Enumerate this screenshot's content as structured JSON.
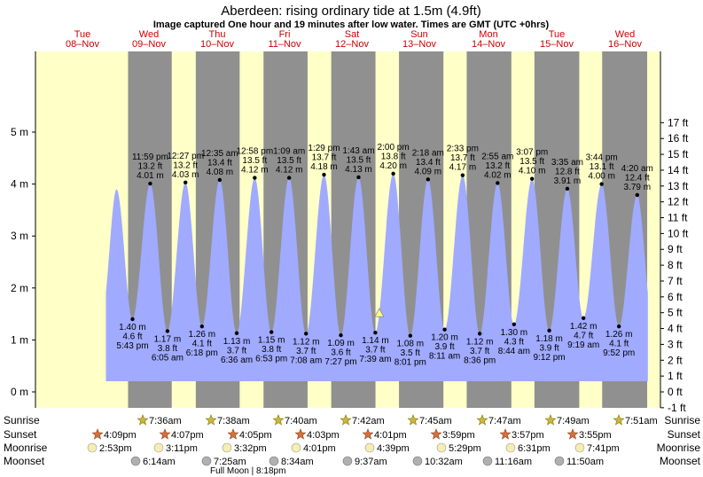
{
  "header": {
    "title": "Aberdeen: rising  ordinary tide at 1.5m (4.9ft)",
    "subtitle": "Image captured One hour and 19 minutes after low water. Times are GMT (UTC +0hrs)"
  },
  "days": [
    {
      "name": "Tue",
      "date": "08–Nov"
    },
    {
      "name": "Wed",
      "date": "09–Nov"
    },
    {
      "name": "Thu",
      "date": "10–Nov"
    },
    {
      "name": "Fri",
      "date": "11–Nov"
    },
    {
      "name": "Sat",
      "date": "12–Nov"
    },
    {
      "name": "Sun",
      "date": "13–Nov"
    },
    {
      "name": "Mon",
      "date": "14–Nov"
    },
    {
      "name": "Tue",
      "date": "15–Nov"
    },
    {
      "name": "Wed",
      "date": "16–Nov"
    }
  ],
  "chart_data": {
    "type": "area",
    "y_unit_left": "m",
    "y_unit_right": "ft",
    "ylim_m": [
      -0.3,
      5.2
    ],
    "yticks_m": [
      0,
      1,
      2,
      3,
      4,
      5
    ],
    "yticks_ft": [
      -1,
      0,
      1,
      2,
      3,
      4,
      5,
      6,
      7,
      8,
      9,
      10,
      11,
      12,
      13,
      14,
      15,
      16,
      17
    ],
    "series": [
      {
        "type": "high",
        "height_m": 3.9,
        "labelled": false
      },
      {
        "type": "low",
        "height_m": 1.4,
        "ft": "4.6 ft",
        "m": "1.40 m",
        "time": "5:43 pm"
      },
      {
        "type": "high",
        "height_m": 4.01,
        "ft": "13.2 ft",
        "m": "4.01 m",
        "time": "11:59 pm"
      },
      {
        "type": "low",
        "height_m": 1.17,
        "ft": "3.8 ft",
        "m": "1.17 m",
        "time": "6:05 am"
      },
      {
        "type": "high",
        "height_m": 4.03,
        "ft": "13.2 ft",
        "m": "4.03 m",
        "time": "12:27 pm"
      },
      {
        "type": "low",
        "height_m": 1.26,
        "ft": "4.1 ft",
        "m": "1.26 m",
        "time": "6:18 pm"
      },
      {
        "type": "high",
        "height_m": 4.08,
        "ft": "13.4 ft",
        "m": "4.08 m",
        "time": "12:35 am"
      },
      {
        "type": "low",
        "height_m": 1.13,
        "ft": "3.7 ft",
        "m": "1.13 m",
        "time": "6:36 am"
      },
      {
        "type": "high",
        "height_m": 4.12,
        "ft": "13.5 ft",
        "m": "4.12 m",
        "time": "12:58 pm"
      },
      {
        "type": "low",
        "height_m": 1.15,
        "ft": "3.8 ft",
        "m": "1.15 m",
        "time": "6:53 pm"
      },
      {
        "type": "high",
        "height_m": 4.12,
        "ft": "13.5 ft",
        "m": "4.12 m",
        "time": "1:09 am"
      },
      {
        "type": "low",
        "height_m": 1.12,
        "ft": "3.7 ft",
        "m": "1.12 m",
        "time": "7:08 am"
      },
      {
        "type": "high",
        "height_m": 4.18,
        "ft": "13.7 ft",
        "m": "4.18 m",
        "time": "1:29 pm"
      },
      {
        "type": "low",
        "height_m": 1.09,
        "ft": "3.6 ft",
        "m": "1.09 m",
        "time": "7:27 pm"
      },
      {
        "type": "high",
        "height_m": 4.13,
        "ft": "13.5 ft",
        "m": "4.13 m",
        "time": "1:43 am"
      },
      {
        "type": "low",
        "height_m": 1.14,
        "ft": "3.7 ft",
        "m": "1.14 m",
        "time": "7:39 am"
      },
      {
        "type": "high",
        "height_m": 4.2,
        "ft": "13.8 ft",
        "m": "4.20 m",
        "time": "2:00 pm"
      },
      {
        "type": "low",
        "height_m": 1.08,
        "ft": "3.5 ft",
        "m": "1.08 m",
        "time": "8:01 pm"
      },
      {
        "type": "high",
        "height_m": 4.09,
        "ft": "13.4 ft",
        "m": "4.09 m",
        "time": "2:18 am"
      },
      {
        "type": "low",
        "height_m": 1.2,
        "ft": "3.9 ft",
        "m": "1.20 m",
        "time": "8:11 am"
      },
      {
        "type": "high",
        "height_m": 4.17,
        "ft": "13.7 ft",
        "m": "4.17 m",
        "time": "2:33 pm"
      },
      {
        "type": "low",
        "height_m": 1.12,
        "ft": "3.7 ft",
        "m": "1.12 m",
        "time": "8:36 pm"
      },
      {
        "type": "high",
        "height_m": 4.02,
        "ft": "13.2 ft",
        "m": "4.02 m",
        "time": "2:55 am"
      },
      {
        "type": "low",
        "height_m": 1.3,
        "ft": "4.3 ft",
        "m": "1.30 m",
        "time": "8:44 am"
      },
      {
        "type": "high",
        "height_m": 4.1,
        "ft": "13.5 ft",
        "m": "4.10 m",
        "time": "3:07 pm"
      },
      {
        "type": "low",
        "height_m": 1.18,
        "ft": "3.9 ft",
        "m": "1.18 m",
        "time": "9:12 pm"
      },
      {
        "type": "high",
        "height_m": 3.91,
        "ft": "12.8 ft",
        "m": "3.91 m",
        "time": "3:35 am"
      },
      {
        "type": "low",
        "height_m": 1.42,
        "ft": "4.7 ft",
        "m": "1.42 m",
        "time": "9:19 am"
      },
      {
        "type": "high",
        "height_m": 4.0,
        "ft": "13.1 ft",
        "m": "4.00 m",
        "time": "3:44 pm"
      },
      {
        "type": "low",
        "height_m": 1.26,
        "ft": "4.1 ft",
        "m": "1.26 m",
        "time": "9:52 pm"
      },
      {
        "type": "high",
        "height_m": 3.79,
        "ft": "12.4 ft",
        "m": "3.79 m",
        "time": "4:20 am"
      }
    ],
    "current_level_m": 1.5,
    "colors": {
      "night": "#909090",
      "day": "#ffffc8",
      "water": "#a0aaff",
      "title": "#000000",
      "date": "#cc0000"
    }
  },
  "sun_moon": {
    "labels": {
      "sunrise": "Sunrise",
      "sunset": "Sunset",
      "moonrise": "Moonrise",
      "moonset": "Moonset"
    },
    "sunrise": [
      "7:36am",
      "7:38am",
      "7:40am",
      "7:42am",
      "7:45am",
      "7:47am",
      "7:49am",
      "7:51am"
    ],
    "sunset": [
      "4:09pm",
      "4:07pm",
      "4:05pm",
      "4:03pm",
      "4:01pm",
      "3:59pm",
      "3:57pm",
      "3:55pm"
    ],
    "moonrise": [
      "2:53pm",
      "3:11pm",
      "3:32pm",
      "4:01pm",
      "4:39pm",
      "5:29pm",
      "6:31pm",
      "7:41pm"
    ],
    "moonset": [
      "6:14am",
      "7:25am",
      "8:34am",
      "9:37am",
      "10:32am",
      "11:16am",
      "11:50am"
    ],
    "full_moon": "Full Moon | 8:18pm"
  }
}
